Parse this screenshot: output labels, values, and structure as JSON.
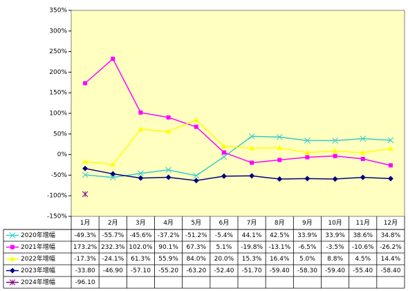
{
  "chart_data": {
    "type": "line",
    "categories": [
      "1月",
      "2月",
      "3月",
      "4月",
      "5月",
      "6月",
      "7月",
      "8月",
      "9月",
      "10月",
      "11月",
      "12月"
    ],
    "ylim": [
      -150,
      350
    ],
    "yticks": [
      {
        "value": -150,
        "label": "-150%"
      },
      {
        "value": -100,
        "label": "-100%"
      },
      {
        "value": -50,
        "label": "-50%"
      },
      {
        "value": 0,
        "label": "0%"
      },
      {
        "value": 50,
        "label": "50%"
      },
      {
        "value": 100,
        "label": "100%"
      },
      {
        "value": 150,
        "label": "150%"
      },
      {
        "value": 200,
        "label": "200%"
      },
      {
        "value": 250,
        "label": "250%"
      },
      {
        "value": 300,
        "label": "300%"
      },
      {
        "value": 350,
        "label": "350%"
      }
    ],
    "grid": false,
    "series": [
      {
        "name": "2020年增幅",
        "color": "#33cccc",
        "marker": "x",
        "values": [
          -49.3,
          -55.7,
          -45.6,
          -37.2,
          -51.2,
          -5.4,
          44.1,
          42.5,
          33.9,
          33.9,
          38.6,
          34.8
        ],
        "value_labels": [
          "-49.3%",
          "-55.7%",
          "-45.6%",
          "-37.2%",
          "-51.2%",
          "-5.4%",
          "44.1%",
          "42.5%",
          "33.9%",
          "33.9%",
          "38.6%",
          "34.8%"
        ]
      },
      {
        "name": "2021年增幅",
        "color": "#ff00ff",
        "marker": "square",
        "values": [
          173.2,
          232.3,
          102.0,
          90.1,
          67.3,
          5.1,
          -19.8,
          -13.1,
          -6.5,
          -3.5,
          -10.6,
          -26.2
        ],
        "value_labels": [
          "173.2%",
          "232.3%",
          "102.0%",
          "90.1%",
          "67.3%",
          "5.1%",
          "-19.8%",
          "-13.1%",
          "-6.5%",
          "-3.5%",
          "-10.6%",
          "-26.2%"
        ]
      },
      {
        "name": "2022年增幅",
        "color": "#ffff00",
        "marker": "triangle",
        "values": [
          -17.3,
          -24.1,
          61.3,
          55.9,
          84.0,
          20.0,
          15.3,
          16.4,
          5.0,
          8.8,
          4.5,
          14.4
        ],
        "value_labels": [
          "-17.3%",
          "-24.1%",
          "61.3%",
          "55.9%",
          "84.0%",
          "20.0%",
          "15.3%",
          "16.4%",
          "5.0%",
          "8.8%",
          "4.5%",
          "14.4%"
        ]
      },
      {
        "name": "2023年增幅",
        "color": "#000080",
        "marker": "diamond",
        "values": [
          -33.8,
          -46.9,
          -57.1,
          -55.2,
          -63.2,
          -52.4,
          -51.7,
          -59.4,
          -58.3,
          -59.4,
          -55.4,
          -58.4
        ],
        "value_labels": [
          "-33.80",
          "-46.90",
          "-57.10",
          "-55.20",
          "-63.20",
          "-52.40",
          "-51.70",
          "-59.40",
          "-58.30",
          "-59.40",
          "-55.40",
          "-58.40"
        ]
      },
      {
        "name": "2024年增幅",
        "color": "#800080",
        "marker": "star",
        "values": [
          -96.1,
          null,
          null,
          null,
          null,
          null,
          null,
          null,
          null,
          null,
          null,
          null
        ],
        "value_labels": [
          "-96.10",
          null,
          null,
          null,
          null,
          null,
          null,
          null,
          null,
          null,
          null,
          null
        ]
      }
    ]
  }
}
